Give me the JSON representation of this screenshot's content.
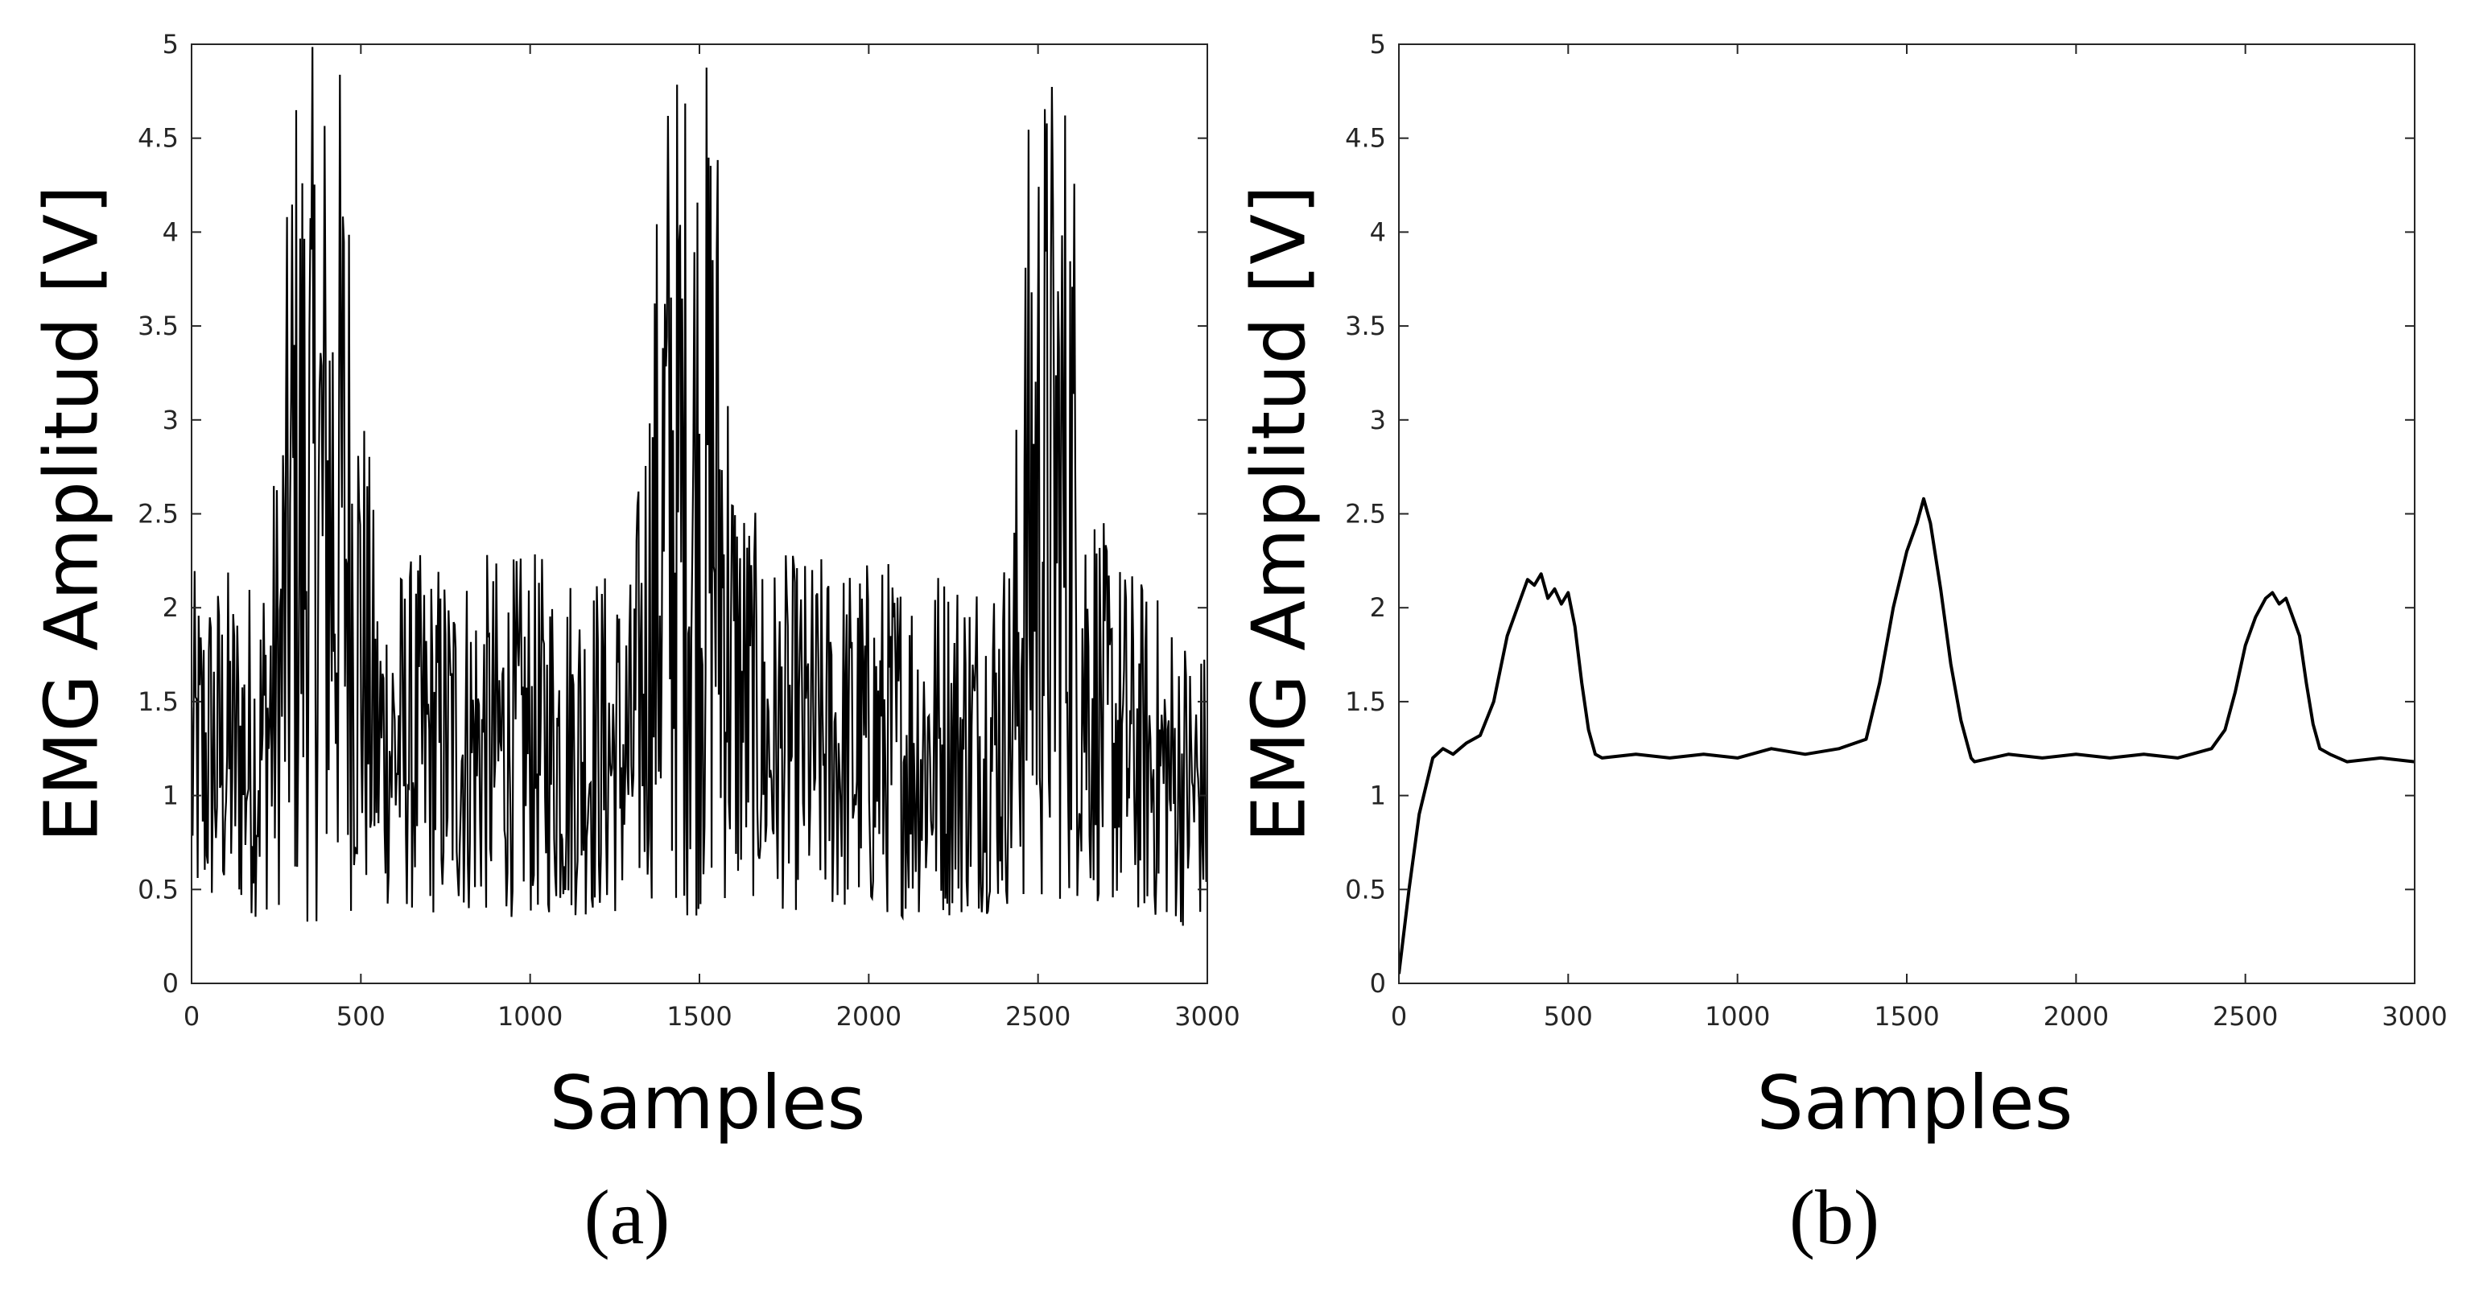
{
  "chart_data": [
    {
      "type": "line",
      "panel_label": "(a)",
      "xlabel": "Samples",
      "ylabel": "EMG Amplitud [V]",
      "xlim": [
        0,
        3000
      ],
      "ylim": [
        0,
        5
      ],
      "xticks": [
        0,
        500,
        1000,
        1500,
        2000,
        2500,
        3000
      ],
      "yticks": [
        0,
        0.5,
        1,
        1.5,
        2,
        2.5,
        3,
        3.5,
        4,
        4.5,
        5
      ],
      "grid": false,
      "series": [
        {
          "color": "#000000",
          "x": [
            0,
            100,
            200,
            260,
            300,
            350,
            400,
            450,
            500,
            550,
            700,
            900,
            1100,
            1300,
            1350,
            1400,
            1450,
            1500,
            1550,
            1600,
            1650,
            1700,
            1900,
            2100,
            2300,
            2420,
            2480,
            2520,
            2560,
            2600,
            2640,
            2700,
            2800,
            2900,
            3000
          ],
          "envelope_low": [
            0.3,
            0.35,
            0.35,
            0.4,
            0.35,
            0.3,
            0.35,
            0.35,
            0.4,
            0.4,
            0.35,
            0.35,
            0.35,
            0.35,
            0.45,
            0.4,
            0.35,
            0.35,
            0.4,
            0.4,
            0.45,
            0.4,
            0.35,
            0.35,
            0.35,
            0.4,
            0.35,
            0.35,
            0.4,
            0.4,
            0.45,
            0.4,
            0.35,
            0.3,
            0.3
          ],
          "envelope_high": [
            2.2,
            2.25,
            2.2,
            3.0,
            5.0,
            5.0,
            5.0,
            5.0,
            3.4,
            2.3,
            2.3,
            2.3,
            2.3,
            2.2,
            3.5,
            5.0,
            5.0,
            5.0,
            5.0,
            3.0,
            2.6,
            2.3,
            2.3,
            2.3,
            2.3,
            2.4,
            5.0,
            5.0,
            5.0,
            5.0,
            3.0,
            2.4,
            2.2,
            2.0,
            1.8
          ]
        }
      ]
    },
    {
      "type": "line",
      "panel_label": "(b)",
      "xlabel": "Samples",
      "ylabel": "EMG Amplitud [V]",
      "xlim": [
        0,
        3000
      ],
      "ylim": [
        0,
        5
      ],
      "xticks": [
        0,
        500,
        1000,
        1500,
        2000,
        2500,
        3000
      ],
      "yticks": [
        0,
        0.5,
        1,
        1.5,
        2,
        2.5,
        3,
        3.5,
        4,
        4.5,
        5
      ],
      "grid": false,
      "series": [
        {
          "color": "#000000",
          "x": [
            0,
            30,
            60,
            100,
            130,
            160,
            200,
            240,
            280,
            320,
            360,
            380,
            400,
            420,
            440,
            460,
            480,
            500,
            520,
            540,
            560,
            580,
            600,
            700,
            800,
            900,
            1000,
            1100,
            1200,
            1300,
            1380,
            1420,
            1460,
            1500,
            1530,
            1550,
            1570,
            1600,
            1630,
            1660,
            1690,
            1700,
            1800,
            1900,
            2000,
            2100,
            2200,
            2300,
            2400,
            2440,
            2470,
            2500,
            2530,
            2560,
            2580,
            2600,
            2620,
            2640,
            2660,
            2680,
            2700,
            2720,
            2750,
            2800,
            2900,
            3000
          ],
          "y": [
            0.05,
            0.5,
            0.9,
            1.2,
            1.25,
            1.22,
            1.28,
            1.32,
            1.5,
            1.85,
            2.05,
            2.15,
            2.12,
            2.18,
            2.05,
            2.1,
            2.02,
            2.08,
            1.9,
            1.6,
            1.35,
            1.22,
            1.2,
            1.22,
            1.2,
            1.22,
            1.2,
            1.25,
            1.22,
            1.25,
            1.3,
            1.6,
            2.0,
            2.3,
            2.45,
            2.58,
            2.45,
            2.1,
            1.7,
            1.4,
            1.2,
            1.18,
            1.22,
            1.2,
            1.22,
            1.2,
            1.22,
            1.2,
            1.25,
            1.35,
            1.55,
            1.8,
            1.95,
            2.05,
            2.08,
            2.02,
            2.05,
            1.95,
            1.85,
            1.6,
            1.38,
            1.25,
            1.22,
            1.18,
            1.2,
            1.18
          ]
        }
      ]
    }
  ]
}
